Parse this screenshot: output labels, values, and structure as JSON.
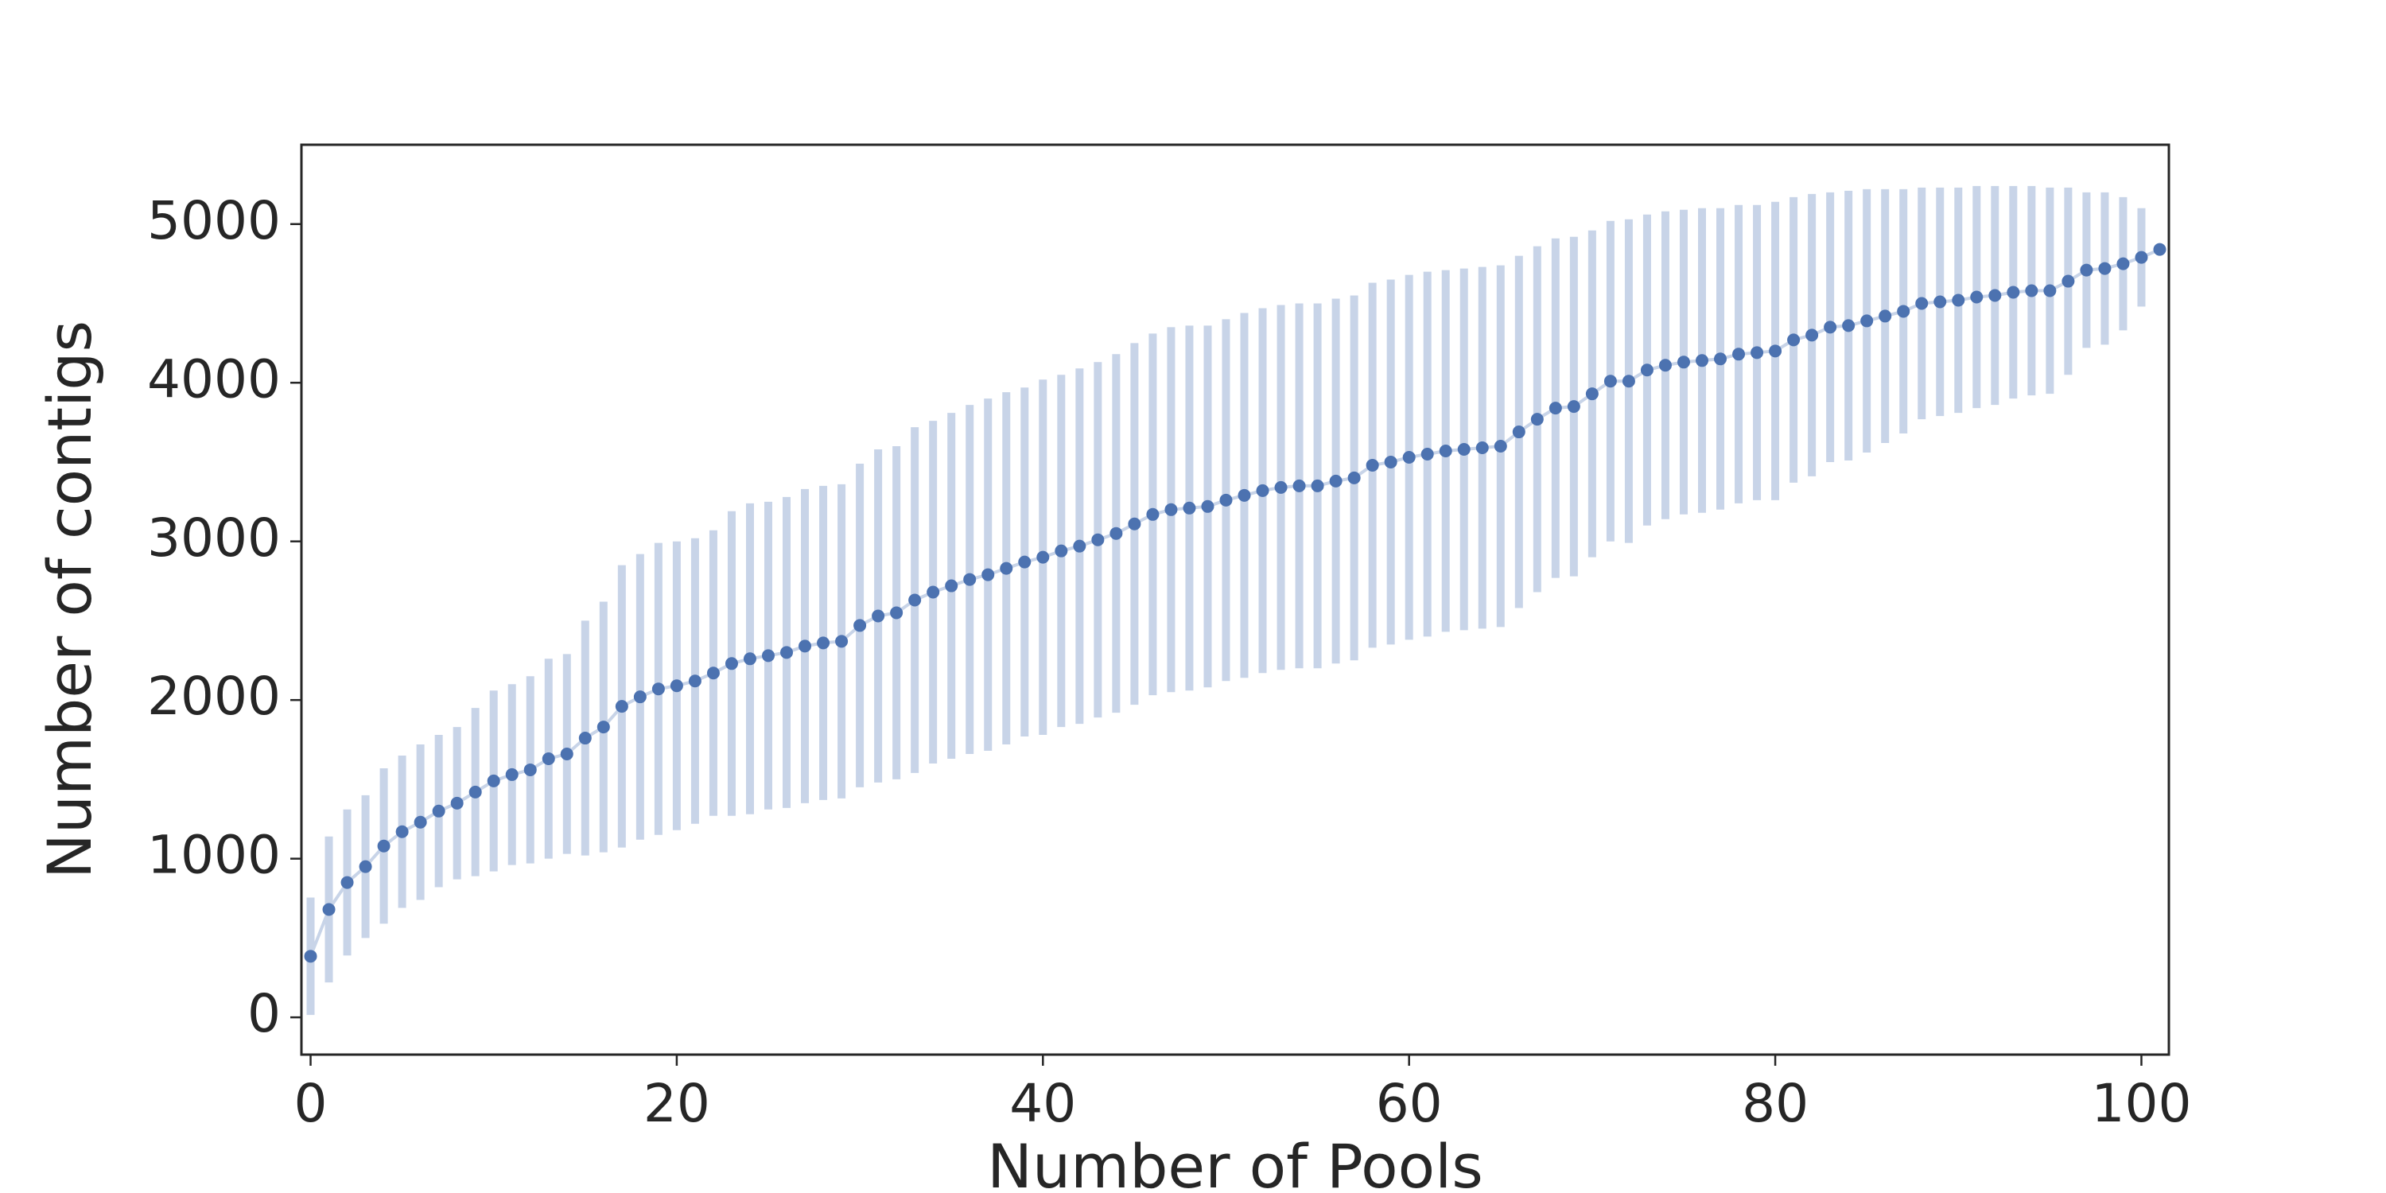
{
  "chart_data": {
    "type": "errorbar_line",
    "xlabel": "Number of Pools",
    "ylabel": "Number of contigs",
    "x": [
      0,
      1,
      2,
      3,
      4,
      5,
      6,
      7,
      8,
      9,
      10,
      11,
      12,
      13,
      14,
      15,
      16,
      17,
      18,
      19,
      20,
      21,
      22,
      23,
      24,
      25,
      26,
      27,
      28,
      29,
      30,
      31,
      32,
      33,
      34,
      35,
      36,
      37,
      38,
      39,
      40,
      41,
      42,
      43,
      44,
      45,
      46,
      47,
      48,
      49,
      50,
      51,
      52,
      53,
      54,
      55,
      56,
      57,
      58,
      59,
      60,
      61,
      62,
      63,
      64,
      65,
      66,
      67,
      68,
      69,
      70,
      71,
      72,
      73,
      74,
      75,
      76,
      77,
      78,
      79,
      80,
      81,
      82,
      83,
      84,
      85,
      86,
      87,
      88,
      89,
      90,
      91,
      92,
      93,
      94,
      95,
      96,
      97,
      98,
      99,
      100,
      101
    ],
    "values": [
      385,
      680,
      850,
      950,
      1080,
      1170,
      1230,
      1300,
      1350,
      1420,
      1490,
      1530,
      1560,
      1630,
      1660,
      1760,
      1830,
      1960,
      2020,
      2070,
      2090,
      2120,
      2170,
      2230,
      2260,
      2280,
      2300,
      2340,
      2360,
      2370,
      2470,
      2530,
      2550,
      2630,
      2680,
      2720,
      2760,
      2790,
      2830,
      2870,
      2900,
      2940,
      2970,
      3010,
      3050,
      3110,
      3170,
      3200,
      3210,
      3220,
      3260,
      3290,
      3320,
      3340,
      3350,
      3350,
      3380,
      3400,
      3480,
      3500,
      3530,
      3550,
      3570,
      3580,
      3590,
      3600,
      3690,
      3770,
      3840,
      3850,
      3930,
      4010,
      4010,
      4080,
      4110,
      4130,
      4140,
      4150,
      4180,
      4190,
      4200,
      4270,
      4300,
      4350,
      4360,
      4390,
      4420,
      4450,
      4500,
      4510,
      4520,
      4540,
      4550,
      4570,
      4580,
      4580,
      4640,
      4710,
      4720,
      4750,
      4790,
      4840
    ],
    "errors": [
      370,
      460,
      460,
      450,
      490,
      480,
      490,
      480,
      480,
      530,
      570,
      570,
      590,
      630,
      630,
      740,
      790,
      890,
      900,
      920,
      910,
      900,
      900,
      960,
      980,
      970,
      980,
      990,
      990,
      990,
      1020,
      1050,
      1050,
      1090,
      1080,
      1090,
      1100,
      1110,
      1110,
      1100,
      1120,
      1110,
      1120,
      1120,
      1130,
      1140,
      1140,
      1150,
      1150,
      1140,
      1140,
      1150,
      1150,
      1150,
      1150,
      1150,
      1150,
      1150,
      1150,
      1150,
      1150,
      1150,
      1140,
      1140,
      1140,
      1140,
      1110,
      1090,
      1070,
      1070,
      1030,
      1010,
      1020,
      980,
      970,
      960,
      960,
      950,
      940,
      930,
      940,
      900,
      890,
      850,
      850,
      830,
      800,
      770,
      730,
      720,
      710,
      700,
      690,
      670,
      660,
      650,
      590,
      490,
      480,
      420,
      310,
      0
    ],
    "color": "#4c72b0",
    "error_color": "#c8d4e8",
    "xlim": [
      -0.5,
      101.5
    ],
    "ylim": [
      -235,
      5500
    ],
    "xticks": [
      0,
      20,
      40,
      60,
      80,
      100
    ],
    "yticks": [
      0,
      1000,
      2000,
      3000,
      4000,
      5000
    ]
  }
}
